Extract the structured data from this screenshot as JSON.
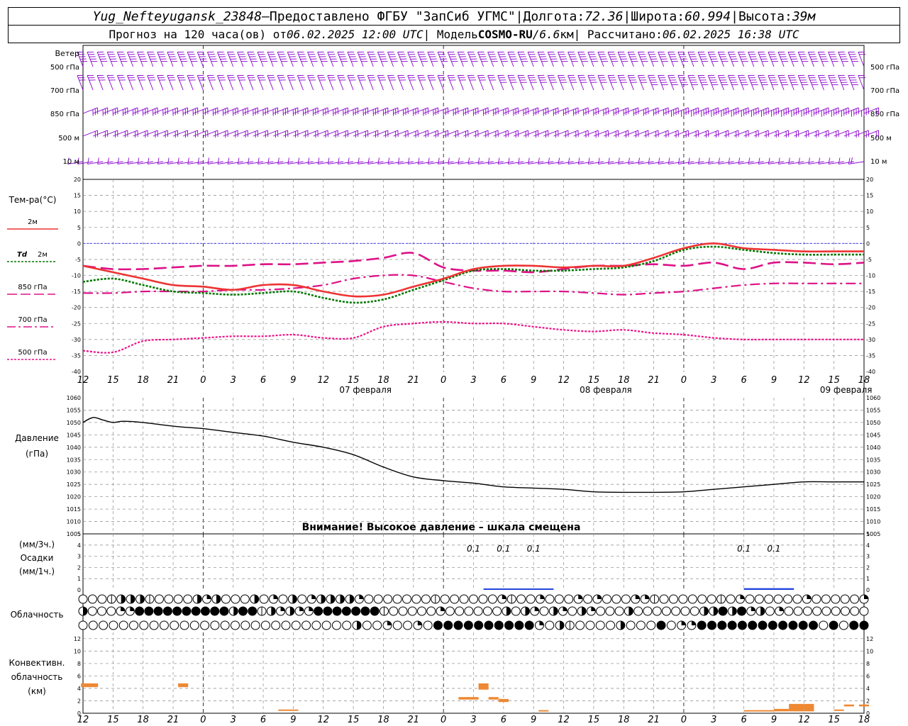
{
  "header": {
    "station": "Yug_Nefteyugansk_23848",
    "dash1": " – ",
    "provider": "Предоставлено ФГБУ \"ЗапСиб УГМС\"",
    "sep1": " | ",
    "lon_label": "Долгота: ",
    "lon_value": "72.36",
    "sep2": " | ",
    "lat_label": "Широта: ",
    "lat_value": "60.994",
    "sep3": " | ",
    "alt_label": "Высота: ",
    "alt_value": "39м",
    "forecast_label": "Прогноз на 120 часа(ов) от ",
    "forecast_start": "06.02.2025 12:00 UTC",
    "sep4": " | Модель ",
    "model_name": "COSMO-RU",
    "model_sep": " / ",
    "model_res": "6.6",
    "model_res_unit": "км",
    "sep5": " | Рассчитано: ",
    "computed": "06.02.2025 16:38 UTC"
  },
  "labels": {
    "wind": "Ветер",
    "levels": [
      "500 гПа",
      "700 гПа",
      "850 гПа",
      "500 м",
      "10  м"
    ],
    "temp_title": "Тем-ра(°C)",
    "t2m": "2м",
    "td_sym": "Td",
    "td2m": "2м",
    "t850": "850 гПа",
    "t700": "700 гПа",
    "t500": "500 гПа",
    "pres1": "Давление",
    "pres2": "(гПа)",
    "pres_warning": "Внимание! Высокое давление – шкала смещена",
    "precip1": "(мм/3ч.)",
    "precip2": "Осадки",
    "precip3": "(мм/1ч.)",
    "cloud": "Облачность",
    "conv1": "Конвективн.",
    "conv2": "облачность",
    "conv3": "(км)"
  },
  "colors": {
    "wind": "#8800cc",
    "t2m": "#ee3333",
    "td2m": "#007700",
    "t850": "#dd1188",
    "t700": "#dd1188",
    "t500": "#ee1188",
    "zero": "#3333ff",
    "pressure": "#000000",
    "precip": "#2244dd",
    "convective": "#ee8833"
  },
  "chart_data": {
    "type": "meteogram",
    "hour_ticks": [
      "12",
      "15",
      "18",
      "21",
      "0",
      "3",
      "6",
      "9",
      "12",
      "15",
      "18",
      "21",
      "0",
      "3",
      "6",
      "9",
      "12",
      "15",
      "18",
      "21",
      "0",
      "3",
      "6",
      "9",
      "12",
      "15",
      "18"
    ],
    "date_labels": [
      {
        "after_hour": 36,
        "text": "07 февраля"
      },
      {
        "after_hour": 60,
        "text": "08 февраля"
      },
      {
        "after_hour": 84,
        "text": "09 февраля"
      }
    ],
    "x_range_hours": [
      0,
      78
    ],
    "temperature": {
      "ylim": [
        -40,
        20
      ],
      "yticks": [
        20,
        15,
        10,
        5,
        0,
        -5,
        -10,
        -15,
        -20,
        -25,
        -30,
        -35,
        -40
      ],
      "x": [
        0,
        3,
        6,
        9,
        12,
        15,
        18,
        21,
        24,
        27,
        30,
        33,
        36,
        39,
        42,
        45,
        48,
        51,
        54,
        57,
        60,
        63,
        66,
        69,
        72,
        75,
        78
      ],
      "t2m": [
        -7,
        -9,
        -11,
        -13,
        -13.5,
        -14.5,
        -13,
        -13,
        -15,
        -16.5,
        -16,
        -13.5,
        -11,
        -8,
        -7,
        -7,
        -7.5,
        -7,
        -7,
        -4.5,
        -1.5,
        0,
        -1.5,
        -2,
        -2.5,
        -2.5,
        -2.5
      ],
      "td2m": [
        -12,
        -11,
        -13,
        -15,
        -15.5,
        -16,
        -15.5,
        -15,
        -17,
        -18.5,
        -17.5,
        -14.5,
        -11.5,
        -8.5,
        -8,
        -8.5,
        -8.5,
        -8,
        -7.5,
        -5.5,
        -2,
        -1,
        -2,
        -3,
        -3.5,
        -3.5,
        -3.5
      ],
      "t850": [
        -7,
        -8,
        -8,
        -7.5,
        -7,
        -7,
        -6.5,
        -6.5,
        -6,
        -5.5,
        -4.5,
        -3,
        -7.5,
        -8.5,
        -8.5,
        -9,
        -8,
        -7,
        -7,
        -6.5,
        -7,
        -6,
        -8,
        -6,
        -6,
        -6.5,
        -6
      ],
      "t700": [
        -15.5,
        -15.5,
        -15,
        -15,
        -15,
        -14.5,
        -14.5,
        -14,
        -13,
        -11,
        -10,
        -10,
        -12,
        -14,
        -15,
        -15,
        -15,
        -15.5,
        -16,
        -15.5,
        -15,
        -14,
        -13,
        -12.5,
        -12.5,
        -12.5,
        -12.5
      ],
      "t500": [
        -33.5,
        -34,
        -30.5,
        -30,
        -29.5,
        -29,
        -29,
        -28.5,
        -29.5,
        -29.5,
        -26,
        -25,
        -24.5,
        -25,
        -25,
        -26,
        -27,
        -27.5,
        -27,
        -28,
        -28.5,
        -29.5,
        -30,
        -30,
        -30,
        -30,
        -30
      ]
    },
    "pressure": {
      "ylim": [
        1005,
        1060
      ],
      "yticks": [
        1060,
        1055,
        1050,
        1045,
        1040,
        1035,
        1030,
        1025,
        1020,
        1015,
        1010,
        1005
      ],
      "x": [
        0,
        1,
        2,
        3,
        4,
        6,
        9,
        12,
        15,
        18,
        21,
        24,
        27,
        30,
        33,
        36,
        39,
        42,
        45,
        48,
        51,
        54,
        57,
        60,
        63,
        66,
        69,
        72,
        75,
        78
      ],
      "values": [
        1050,
        1052,
        1051,
        1050,
        1050.5,
        1050,
        1048.5,
        1047.5,
        1046,
        1044.5,
        1042,
        1040,
        1037,
        1032,
        1028,
        1026.5,
        1025.5,
        1024,
        1023.5,
        1023,
        1022,
        1021.8,
        1021.8,
        1022,
        1023,
        1024,
        1025,
        1026,
        1026,
        1026
      ]
    },
    "precipitation": {
      "ylim": [
        0,
        5
      ],
      "yticks": [
        5,
        4,
        3,
        2,
        1,
        0
      ],
      "labels": [
        {
          "x": 39,
          "text": "0.1"
        },
        {
          "x": 42,
          "text": "0.1"
        },
        {
          "x": 45,
          "text": "0.1"
        },
        {
          "x": 66,
          "text": "0.1"
        },
        {
          "x": 69,
          "text": "0.1"
        }
      ],
      "bars": [
        {
          "x0": 40,
          "x1": 47,
          "value": 0.05
        },
        {
          "x0": 66,
          "x1": 71,
          "value": 0.15
        }
      ]
    },
    "cloud_rows": [
      "00013331000032300030203023333200000001000000210020002020002210000001020000002000002",
      "300022444444444434413232244444441000002000000303203203200030000000334342302000000000",
      "000000000000000000000000000300200204444444444203100003000402244444444444404044"
    ],
    "convective": {
      "ylim": [
        0,
        13
      ],
      "yticks": [
        12,
        10,
        8,
        6,
        4,
        2,
        0
      ],
      "bars": [
        {
          "x0": -0.2,
          "x1": 1.5,
          "bottom": 4.2,
          "top": 4.8
        },
        {
          "x0": 9.5,
          "x1": 10.5,
          "bottom": 4.2,
          "top": 4.8
        },
        {
          "x0": 19.5,
          "x1": 21.5,
          "bottom": 0.4,
          "top": 0.6
        },
        {
          "x0": 37.5,
          "x1": 39.5,
          "bottom": 2.2,
          "top": 2.6
        },
        {
          "x0": 39.5,
          "x1": 40.5,
          "bottom": 3.8,
          "top": 4.8
        },
        {
          "x0": 40.5,
          "x1": 41.5,
          "bottom": 2.2,
          "top": 2.6
        },
        {
          "x0": 41.5,
          "x1": 42.5,
          "bottom": 1.8,
          "top": 2.3
        },
        {
          "x0": 45.5,
          "x1": 46.5,
          "bottom": 0.3,
          "top": 0.5
        },
        {
          "x0": 66,
          "x1": 69,
          "bottom": 0.3,
          "top": 0.5
        },
        {
          "x0": 69,
          "x1": 70.5,
          "bottom": 0.3,
          "top": 0.7
        },
        {
          "x0": 70.5,
          "x1": 72,
          "bottom": 0.3,
          "top": 1.5
        },
        {
          "x0": 72,
          "x1": 73,
          "bottom": 0.3,
          "top": 1.5
        },
        {
          "x0": 75,
          "x1": 76,
          "bottom": 0.4,
          "top": 0.6
        },
        {
          "x0": 76,
          "x1": 77,
          "bottom": 1.1,
          "top": 1.4
        },
        {
          "x0": 77.5,
          "x1": 78.5,
          "bottom": 1.1,
          "top": 1.4
        }
      ]
    }
  }
}
